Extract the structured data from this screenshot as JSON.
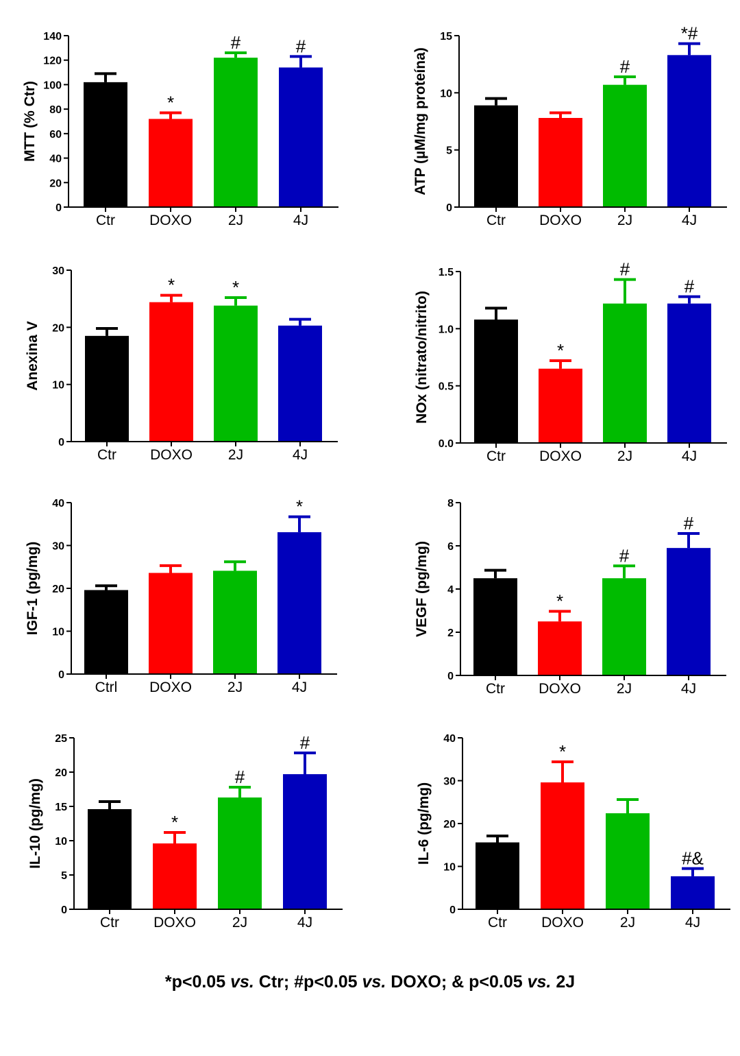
{
  "colors": {
    "Ctr": "#000000",
    "DOXO": "#ff0000",
    "2J": "#00bb00",
    "4J": "#0000bb",
    "axis": "#000000"
  },
  "footer": {
    "part1": "*p<0.05 ",
    "vs1": "vs.",
    "part2": " Ctr; #p<0.05 ",
    "vs2": "vs.",
    "part3": " DOXO; & p<0.05 ",
    "vs3": "vs.",
    "part4": " 2J"
  },
  "chart_data": [
    {
      "type": "bar",
      "id": "mtt",
      "ylabel": "MTT (% Ctr)",
      "categories": [
        "Ctr",
        "DOXO",
        "2J",
        "4J"
      ],
      "values": [
        102,
        72,
        122,
        114
      ],
      "errors": [
        7,
        5,
        4,
        9
      ],
      "annotations": [
        "",
        "*",
        "#",
        "#"
      ],
      "ylim": [
        0,
        140
      ],
      "ticks": [
        0,
        20,
        40,
        60,
        80,
        100,
        120,
        140
      ],
      "tick_labels": [
        "0",
        "20",
        "40",
        "60",
        "80",
        "100",
        "120",
        "140"
      ]
    },
    {
      "type": "bar",
      "id": "atp",
      "ylabel": "ATP (µM/mg proteína)",
      "categories": [
        "Ctr",
        "DOXO",
        "2J",
        "4J"
      ],
      "values": [
        8.9,
        7.8,
        10.7,
        13.3
      ],
      "errors": [
        0.6,
        0.45,
        0.7,
        1.0
      ],
      "annotations": [
        "",
        "",
        "#",
        "*#"
      ],
      "ylim": [
        0,
        15
      ],
      "ticks": [
        0,
        5,
        10,
        15
      ],
      "tick_labels": [
        "0",
        "5",
        "10",
        "15"
      ]
    },
    {
      "type": "bar",
      "id": "anexina",
      "ylabel": "Anexina V",
      "categories": [
        "Ctr",
        "DOXO",
        "2J",
        "4J"
      ],
      "values": [
        18.5,
        24.4,
        23.8,
        20.3
      ],
      "errors": [
        1.3,
        1.2,
        1.4,
        1.1
      ],
      "annotations": [
        "",
        "*",
        "*",
        ""
      ],
      "ylim": [
        0,
        30
      ],
      "ticks": [
        0,
        10,
        20,
        30
      ],
      "tick_labels": [
        "0",
        "10",
        "20",
        "30"
      ]
    },
    {
      "type": "bar",
      "id": "nox",
      "ylabel": "NOx (nitrato/nitrito)",
      "categories": [
        "Ctr",
        "DOXO",
        "2J",
        "4J"
      ],
      "values": [
        1.08,
        0.65,
        1.22,
        1.22
      ],
      "errors": [
        0.1,
        0.07,
        0.21,
        0.06
      ],
      "annotations": [
        "",
        "*",
        "#",
        "#"
      ],
      "ylim": [
        0,
        1.5
      ],
      "ticks": [
        0,
        0.5,
        1.0,
        1.5
      ],
      "tick_labels": [
        "0.0",
        "0.5",
        "1.0",
        "1.5"
      ]
    },
    {
      "type": "bar",
      "id": "igf1",
      "ylabel": "IGF-1 (pg/mg)",
      "categories": [
        "Ctrl",
        "DOXO",
        "2J",
        "4J"
      ],
      "values": [
        19.6,
        23.6,
        24.1,
        33.1
      ],
      "errors": [
        1.0,
        1.7,
        2.1,
        3.6
      ],
      "annotations": [
        "",
        "",
        "",
        "*"
      ],
      "ylim": [
        0,
        40
      ],
      "ticks": [
        0,
        10,
        20,
        30,
        40
      ],
      "tick_labels": [
        "0",
        "10",
        "20",
        "30",
        "40"
      ]
    },
    {
      "type": "bar",
      "id": "vegf",
      "ylabel": "VEGF (pg/mg)",
      "categories": [
        "Ctr",
        "DOXO",
        "2J",
        "4J"
      ],
      "values": [
        4.5,
        2.5,
        4.5,
        5.9
      ],
      "errors": [
        0.37,
        0.47,
        0.57,
        0.67
      ],
      "annotations": [
        "",
        "*",
        "#",
        "#"
      ],
      "ylim": [
        0,
        8
      ],
      "ticks": [
        0,
        2,
        4,
        6,
        8
      ],
      "tick_labels": [
        "0",
        "2",
        "4",
        "6",
        "8"
      ]
    },
    {
      "type": "bar",
      "id": "il10",
      "ylabel": "IL-10 (pg/mg)",
      "categories": [
        "Ctr",
        "DOXO",
        "2J",
        "4J"
      ],
      "values": [
        14.6,
        9.6,
        16.3,
        19.7
      ],
      "errors": [
        1.1,
        1.6,
        1.5,
        3.1
      ],
      "annotations": [
        "",
        "*",
        "#",
        "#"
      ],
      "ylim": [
        0,
        25
      ],
      "ticks": [
        0,
        5,
        10,
        15,
        20,
        25
      ],
      "tick_labels": [
        "0",
        "5",
        "10",
        "15",
        "20",
        "25"
      ]
    },
    {
      "type": "bar",
      "id": "il6",
      "ylabel": "IL-6 (pg/mg)",
      "categories": [
        "Ctr",
        "DOXO",
        "2J",
        "4J"
      ],
      "values": [
        15.6,
        29.6,
        22.4,
        7.7
      ],
      "errors": [
        1.5,
        4.8,
        3.2,
        1.8
      ],
      "annotations": [
        "",
        "*",
        "",
        "#&"
      ],
      "ylim": [
        0,
        40
      ],
      "ticks": [
        0,
        10,
        20,
        30,
        40
      ],
      "tick_labels": [
        "0",
        "10",
        "20",
        "30",
        "40"
      ]
    }
  ]
}
